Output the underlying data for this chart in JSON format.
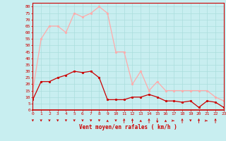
{
  "hours": [
    0,
    1,
    2,
    3,
    4,
    5,
    6,
    7,
    8,
    9,
    10,
    11,
    12,
    13,
    14,
    15,
    16,
    17,
    18,
    19,
    20,
    21,
    22,
    23
  ],
  "vent_moyen": [
    8,
    22,
    22,
    25,
    27,
    30,
    29,
    30,
    25,
    8,
    8,
    8,
    10,
    10,
    12,
    10,
    7,
    7,
    6,
    7,
    2,
    7,
    6,
    2
  ],
  "rafales": [
    15,
    55,
    65,
    65,
    60,
    75,
    72,
    75,
    80,
    75,
    45,
    45,
    20,
    30,
    15,
    22,
    15,
    15,
    15,
    15,
    15,
    15,
    10,
    7
  ],
  "bg_color": "#c8eef0",
  "grid_color": "#aadddd",
  "moyen_color": "#cc0000",
  "rafales_color": "#ffaaaa",
  "xlabel": "Vent moyen/en rafales ( km/h )",
  "yticks": [
    0,
    5,
    10,
    15,
    20,
    25,
    30,
    35,
    40,
    45,
    50,
    55,
    60,
    65,
    70,
    75,
    80
  ],
  "ylim": [
    0,
    83
  ],
  "xlim": [
    0,
    23
  ]
}
